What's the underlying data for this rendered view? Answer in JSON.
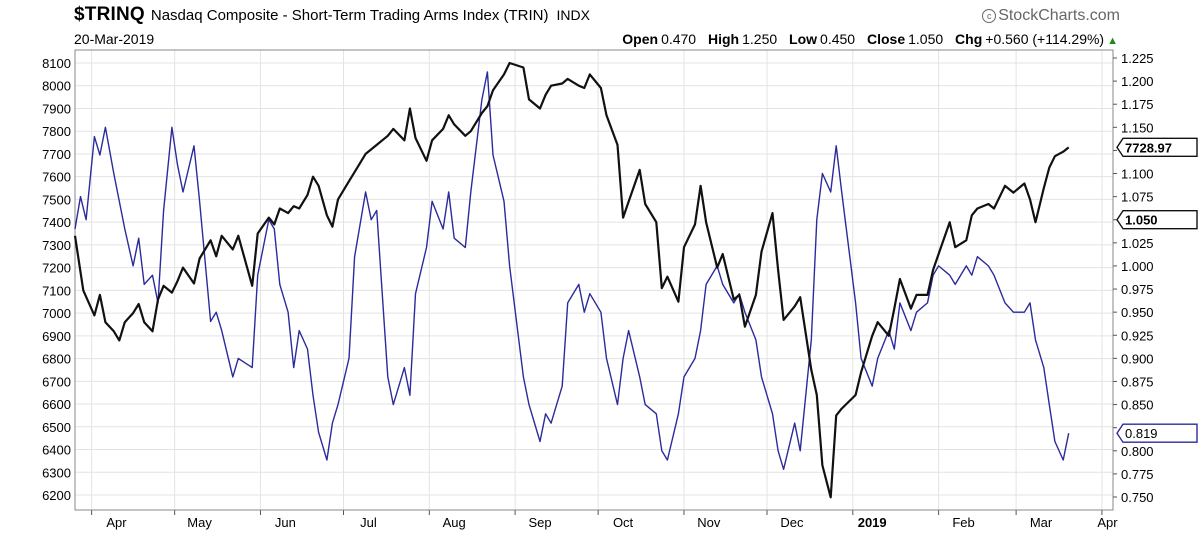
{
  "header": {
    "symbol": "$TRINQ",
    "name": "Nasdaq Composite - Short-Term Trading Arms Index (TRIN)",
    "exchange": "INDX",
    "brand": "StockCharts.com",
    "date": "20-Mar-2019",
    "open_label": "Open",
    "open": "0.470",
    "high_label": "High",
    "high": "1.250",
    "low_label": "Low",
    "low": "0.450",
    "close_label": "Close",
    "close": "1.050",
    "chg_label": "Chg",
    "chg": "+0.560 (+114.29%)"
  },
  "colors": {
    "trin": "#2b2b9c",
    "nasdaq": "#111111",
    "grid": "#e3e3e3",
    "up": "#1a8a1a"
  },
  "chart_data": {
    "type": "line",
    "x_ticks": [
      "Apr",
      "May",
      "Jun",
      "Jul",
      "Aug",
      "Sep",
      "Oct",
      "Nov",
      "Dec",
      "2019",
      "Feb",
      "Mar",
      "Apr"
    ],
    "x_range": [
      "2018-03-26",
      "2019-04-05"
    ],
    "y_left": {
      "min": 6200,
      "max": 8100,
      "ticks": [
        6200,
        6300,
        6400,
        6500,
        6600,
        6700,
        6800,
        6900,
        7000,
        7100,
        7200,
        7300,
        7400,
        7500,
        7600,
        7700,
        7800,
        7900,
        8000,
        8100
      ]
    },
    "y_right": {
      "min": 0.75,
      "max": 1.225,
      "ticks": [
        "0.750",
        "0.775",
        "0.800",
        "0.825",
        "0.850",
        "0.875",
        "0.900",
        "0.925",
        "0.950",
        "0.975",
        "1.000",
        "1.025",
        "1.050",
        "1.075",
        "1.100",
        "1.125",
        "1.150",
        "1.175",
        "1.200",
        "1.225"
      ]
    },
    "last_labels": {
      "nasdaq": "7728.97",
      "trin": "1.050",
      "trin_ma": "0.819"
    },
    "series": [
      {
        "axis": "left",
        "points": [
          [
            "2018-03-26",
            7340
          ],
          [
            "2018-03-29",
            7100
          ],
          [
            "2018-04-02",
            6990
          ],
          [
            "2018-04-04",
            7080
          ],
          [
            "2018-04-06",
            6960
          ],
          [
            "2018-04-09",
            6920
          ],
          [
            "2018-04-11",
            6880
          ],
          [
            "2018-04-13",
            6960
          ],
          [
            "2018-04-16",
            7000
          ],
          [
            "2018-04-18",
            7040
          ],
          [
            "2018-04-20",
            6960
          ],
          [
            "2018-04-23",
            6920
          ],
          [
            "2018-04-25",
            7060
          ],
          [
            "2018-04-27",
            7120
          ],
          [
            "2018-04-30",
            7090
          ],
          [
            "2018-05-02",
            7140
          ],
          [
            "2018-05-04",
            7200
          ],
          [
            "2018-05-08",
            7130
          ],
          [
            "2018-05-10",
            7240
          ],
          [
            "2018-05-14",
            7320
          ],
          [
            "2018-05-16",
            7250
          ],
          [
            "2018-05-18",
            7340
          ],
          [
            "2018-05-22",
            7280
          ],
          [
            "2018-05-24",
            7340
          ],
          [
            "2018-05-29",
            7120
          ],
          [
            "2018-05-31",
            7350
          ],
          [
            "2018-06-04",
            7420
          ],
          [
            "2018-06-06",
            7390
          ],
          [
            "2018-06-08",
            7460
          ],
          [
            "2018-06-11",
            7440
          ],
          [
            "2018-06-13",
            7470
          ],
          [
            "2018-06-15",
            7460
          ],
          [
            "2018-06-18",
            7520
          ],
          [
            "2018-06-20",
            7600
          ],
          [
            "2018-06-22",
            7560
          ],
          [
            "2018-06-25",
            7430
          ],
          [
            "2018-06-27",
            7380
          ],
          [
            "2018-06-29",
            7500
          ],
          [
            "2018-07-03",
            7580
          ],
          [
            "2018-07-05",
            7620
          ],
          [
            "2018-07-09",
            7700
          ],
          [
            "2018-07-11",
            7720
          ],
          [
            "2018-07-13",
            7740
          ],
          [
            "2018-07-17",
            7780
          ],
          [
            "2018-07-19",
            7810
          ],
          [
            "2018-07-23",
            7760
          ],
          [
            "2018-07-25",
            7900
          ],
          [
            "2018-07-27",
            7770
          ],
          [
            "2018-07-31",
            7670
          ],
          [
            "2018-08-02",
            7760
          ],
          [
            "2018-08-06",
            7810
          ],
          [
            "2018-08-08",
            7870
          ],
          [
            "2018-08-10",
            7830
          ],
          [
            "2018-08-14",
            7780
          ],
          [
            "2018-08-16",
            7800
          ],
          [
            "2018-08-20",
            7880
          ],
          [
            "2018-08-22",
            7910
          ],
          [
            "2018-08-24",
            7980
          ],
          [
            "2018-08-28",
            8050
          ],
          [
            "2018-08-30",
            8100
          ],
          [
            "2018-09-04",
            8080
          ],
          [
            "2018-09-06",
            7940
          ],
          [
            "2018-09-10",
            7900
          ],
          [
            "2018-09-12",
            7960
          ],
          [
            "2018-09-14",
            8000
          ],
          [
            "2018-09-18",
            8010
          ],
          [
            "2018-09-20",
            8030
          ],
          [
            "2018-09-24",
            8000
          ],
          [
            "2018-09-26",
            7990
          ],
          [
            "2018-09-28",
            8050
          ],
          [
            "2018-10-02",
            7990
          ],
          [
            "2018-10-04",
            7870
          ],
          [
            "2018-10-08",
            7740
          ],
          [
            "2018-10-10",
            7420
          ],
          [
            "2018-10-12",
            7490
          ],
          [
            "2018-10-16",
            7630
          ],
          [
            "2018-10-18",
            7480
          ],
          [
            "2018-10-22",
            7400
          ],
          [
            "2018-10-24",
            7110
          ],
          [
            "2018-10-26",
            7160
          ],
          [
            "2018-10-30",
            7050
          ],
          [
            "2018-11-01",
            7290
          ],
          [
            "2018-11-05",
            7390
          ],
          [
            "2018-11-07",
            7560
          ],
          [
            "2018-11-09",
            7400
          ],
          [
            "2018-11-13",
            7200
          ],
          [
            "2018-11-15",
            7260
          ],
          [
            "2018-11-19",
            7060
          ],
          [
            "2018-11-21",
            7080
          ],
          [
            "2018-11-23",
            6940
          ],
          [
            "2018-11-27",
            7080
          ],
          [
            "2018-11-29",
            7270
          ],
          [
            "2018-12-03",
            7440
          ],
          [
            "2018-12-05",
            7190
          ],
          [
            "2018-12-07",
            6970
          ],
          [
            "2018-12-11",
            7030
          ],
          [
            "2018-12-13",
            7070
          ],
          [
            "2018-12-17",
            6750
          ],
          [
            "2018-12-19",
            6640
          ],
          [
            "2018-12-21",
            6330
          ],
          [
            "2018-12-24",
            6190
          ],
          [
            "2018-12-26",
            6550
          ],
          [
            "2018-12-28",
            6580
          ],
          [
            "2019-01-02",
            6640
          ],
          [
            "2019-01-04",
            6740
          ],
          [
            "2019-01-08",
            6900
          ],
          [
            "2019-01-10",
            6960
          ],
          [
            "2019-01-14",
            6900
          ],
          [
            "2019-01-16",
            7020
          ],
          [
            "2019-01-18",
            7150
          ],
          [
            "2019-01-22",
            7020
          ],
          [
            "2019-01-24",
            7080
          ],
          [
            "2019-01-28",
            7080
          ],
          [
            "2019-01-30",
            7190
          ],
          [
            "2019-02-01",
            7260
          ],
          [
            "2019-02-05",
            7400
          ],
          [
            "2019-02-07",
            7290
          ],
          [
            "2019-02-11",
            7320
          ],
          [
            "2019-02-13",
            7430
          ],
          [
            "2019-02-15",
            7460
          ],
          [
            "2019-02-19",
            7480
          ],
          [
            "2019-02-21",
            7460
          ],
          [
            "2019-02-25",
            7560
          ],
          [
            "2019-02-28",
            7530
          ],
          [
            "2019-03-04",
            7570
          ],
          [
            "2019-03-06",
            7500
          ],
          [
            "2019-03-08",
            7400
          ],
          [
            "2019-03-11",
            7550
          ],
          [
            "2019-03-13",
            7640
          ],
          [
            "2019-03-15",
            7690
          ],
          [
            "2019-03-18",
            7710
          ],
          [
            "2019-03-20",
            7729
          ]
        ]
      },
      {
        "axis": "right",
        "points": [
          [
            "2018-03-26",
            1.04
          ],
          [
            "2018-03-28",
            1.075
          ],
          [
            "2018-03-30",
            1.05
          ],
          [
            "2018-04-02",
            1.14
          ],
          [
            "2018-04-04",
            1.12
          ],
          [
            "2018-04-06",
            1.15
          ],
          [
            "2018-04-09",
            1.1
          ],
          [
            "2018-04-11",
            1.07
          ],
          [
            "2018-04-13",
            1.04
          ],
          [
            "2018-04-16",
            1.0
          ],
          [
            "2018-04-18",
            1.03
          ],
          [
            "2018-04-20",
            0.98
          ],
          [
            "2018-04-23",
            0.99
          ],
          [
            "2018-04-25",
            0.96
          ],
          [
            "2018-04-27",
            1.06
          ],
          [
            "2018-04-30",
            1.15
          ],
          [
            "2018-05-02",
            1.11
          ],
          [
            "2018-05-04",
            1.08
          ],
          [
            "2018-05-08",
            1.13
          ],
          [
            "2018-05-10",
            1.07
          ],
          [
            "2018-05-14",
            0.94
          ],
          [
            "2018-05-16",
            0.95
          ],
          [
            "2018-05-18",
            0.93
          ],
          [
            "2018-05-22",
            0.88
          ],
          [
            "2018-05-24",
            0.9
          ],
          [
            "2018-05-29",
            0.89
          ],
          [
            "2018-05-31",
            0.99
          ],
          [
            "2018-06-04",
            1.05
          ],
          [
            "2018-06-06",
            1.04
          ],
          [
            "2018-06-08",
            0.98
          ],
          [
            "2018-06-11",
            0.95
          ],
          [
            "2018-06-13",
            0.89
          ],
          [
            "2018-06-15",
            0.93
          ],
          [
            "2018-06-18",
            0.91
          ],
          [
            "2018-06-20",
            0.86
          ],
          [
            "2018-06-22",
            0.82
          ],
          [
            "2018-06-25",
            0.79
          ],
          [
            "2018-06-27",
            0.83
          ],
          [
            "2018-06-29",
            0.85
          ],
          [
            "2018-07-03",
            0.9
          ],
          [
            "2018-07-05",
            1.01
          ],
          [
            "2018-07-09",
            1.08
          ],
          [
            "2018-07-11",
            1.05
          ],
          [
            "2018-07-13",
            1.06
          ],
          [
            "2018-07-17",
            0.88
          ],
          [
            "2018-07-19",
            0.85
          ],
          [
            "2018-07-23",
            0.89
          ],
          [
            "2018-07-25",
            0.86
          ],
          [
            "2018-07-27",
            0.97
          ],
          [
            "2018-07-31",
            1.02
          ],
          [
            "2018-08-02",
            1.07
          ],
          [
            "2018-08-06",
            1.04
          ],
          [
            "2018-08-08",
            1.08
          ],
          [
            "2018-08-10",
            1.03
          ],
          [
            "2018-08-14",
            1.02
          ],
          [
            "2018-08-16",
            1.08
          ],
          [
            "2018-08-20",
            1.18
          ],
          [
            "2018-08-22",
            1.21
          ],
          [
            "2018-08-24",
            1.12
          ],
          [
            "2018-08-28",
            1.07
          ],
          [
            "2018-08-30",
            1.0
          ],
          [
            "2018-09-04",
            0.88
          ],
          [
            "2018-09-06",
            0.85
          ],
          [
            "2018-09-10",
            0.81
          ],
          [
            "2018-09-12",
            0.84
          ],
          [
            "2018-09-14",
            0.83
          ],
          [
            "2018-09-18",
            0.87
          ],
          [
            "2018-09-20",
            0.96
          ],
          [
            "2018-09-24",
            0.98
          ],
          [
            "2018-09-26",
            0.95
          ],
          [
            "2018-09-28",
            0.97
          ],
          [
            "2018-10-02",
            0.95
          ],
          [
            "2018-10-04",
            0.9
          ],
          [
            "2018-10-08",
            0.85
          ],
          [
            "2018-10-10",
            0.9
          ],
          [
            "2018-10-12",
            0.93
          ],
          [
            "2018-10-16",
            0.88
          ],
          [
            "2018-10-18",
            0.85
          ],
          [
            "2018-10-22",
            0.84
          ],
          [
            "2018-10-24",
            0.8
          ],
          [
            "2018-10-26",
            0.79
          ],
          [
            "2018-10-30",
            0.84
          ],
          [
            "2018-11-01",
            0.88
          ],
          [
            "2018-11-05",
            0.9
          ],
          [
            "2018-11-07",
            0.93
          ],
          [
            "2018-11-09",
            0.98
          ],
          [
            "2018-11-13",
            1.0
          ],
          [
            "2018-11-15",
            0.98
          ],
          [
            "2018-11-19",
            0.96
          ],
          [
            "2018-11-21",
            0.97
          ],
          [
            "2018-11-23",
            0.95
          ],
          [
            "2018-11-27",
            0.92
          ],
          [
            "2018-11-29",
            0.88
          ],
          [
            "2018-12-03",
            0.84
          ],
          [
            "2018-12-05",
            0.8
          ],
          [
            "2018-12-07",
            0.78
          ],
          [
            "2018-12-11",
            0.83
          ],
          [
            "2018-12-13",
            0.8
          ],
          [
            "2018-12-17",
            0.92
          ],
          [
            "2018-12-19",
            1.05
          ],
          [
            "2018-12-21",
            1.1
          ],
          [
            "2018-12-24",
            1.08
          ],
          [
            "2018-12-26",
            1.13
          ],
          [
            "2018-12-28",
            1.08
          ],
          [
            "2019-01-02",
            0.96
          ],
          [
            "2019-01-04",
            0.9
          ],
          [
            "2019-01-08",
            0.87
          ],
          [
            "2019-01-10",
            0.9
          ],
          [
            "2019-01-14",
            0.93
          ],
          [
            "2019-01-16",
            0.91
          ],
          [
            "2019-01-18",
            0.96
          ],
          [
            "2019-01-22",
            0.93
          ],
          [
            "2019-01-24",
            0.95
          ],
          [
            "2019-01-28",
            0.96
          ],
          [
            "2019-01-30",
            0.99
          ],
          [
            "2019-02-01",
            1.0
          ],
          [
            "2019-02-05",
            0.99
          ],
          [
            "2019-02-07",
            0.98
          ],
          [
            "2019-02-11",
            1.0
          ],
          [
            "2019-02-13",
            0.99
          ],
          [
            "2019-02-15",
            1.01
          ],
          [
            "2019-02-19",
            1.0
          ],
          [
            "2019-02-21",
            0.99
          ],
          [
            "2019-02-25",
            0.96
          ],
          [
            "2019-02-28",
            0.95
          ],
          [
            "2019-03-04",
            0.95
          ],
          [
            "2019-03-06",
            0.96
          ],
          [
            "2019-03-08",
            0.92
          ],
          [
            "2019-03-11",
            0.89
          ],
          [
            "2019-03-13",
            0.85
          ],
          [
            "2019-03-15",
            0.81
          ],
          [
            "2019-03-18",
            0.79
          ],
          [
            "2019-03-20",
            0.819
          ]
        ]
      }
    ]
  }
}
